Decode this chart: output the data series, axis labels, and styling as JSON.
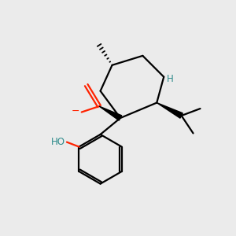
{
  "bg_color": "#ebebeb",
  "bond_color": "#000000",
  "o_color": "#ff2200",
  "h_color": "#2e8b8b",
  "figsize": [
    3.0,
    3.0
  ],
  "dpi": 100
}
